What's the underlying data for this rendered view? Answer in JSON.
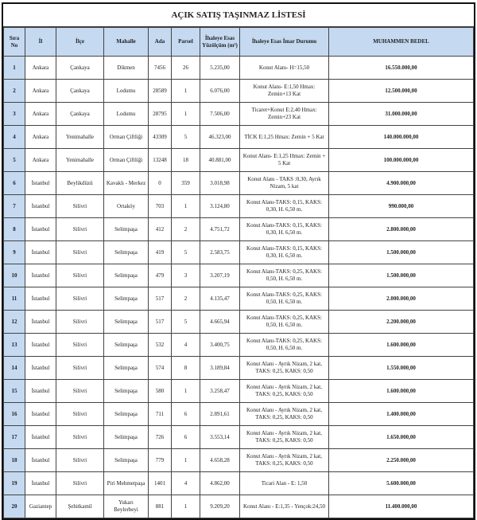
{
  "title": "AÇIK SATIŞ TAŞINMAZ LİSTESİ",
  "columns": [
    "Sıra No",
    "İl",
    "İlçe",
    "Mahalle",
    "Ada",
    "Parsel",
    "İhaleye Esas Yüzölçüm (m²)",
    "İhaleye Esas İmar Durumu",
    "MUHAMMEN BEDEL"
  ],
  "colors": {
    "header_bg": "#c5d9f1",
    "border": "#111111"
  },
  "rows": [
    [
      "1",
      "Ankara",
      "Çankaya",
      "Dikmen",
      "7456",
      "26",
      "5.235,00",
      "Konut Alanı- H=15,50",
      "16.550.000,00"
    ],
    [
      "2",
      "Ankara",
      "Çankaya",
      "Lodumu",
      "28589",
      "1",
      "6.076,00",
      "Konut Alanı- E:1,50 Hmax: Zemin+13 Kat",
      "12.500.000,00"
    ],
    [
      "3",
      "Ankara",
      "Çankaya",
      "Lodumu",
      "28795",
      "1",
      "7.506,00",
      "Ticaret+Konut E:2,40 Hmax: Zemin+23 Kat",
      "31.000.000,00"
    ],
    [
      "4",
      "Ankara",
      "Yenimahalle",
      "Orman Çiftliği",
      "43309",
      "5",
      "46.323,00",
      "TİCK E:1,25 Hmax: Zemin + 5 Kat",
      "140.000.000,00"
    ],
    [
      "5",
      "Ankara",
      "Yenimahalle",
      "Orman Çiftliği",
      "13248",
      "18",
      "40.881,00",
      "Konut Alanı- E:1,25 Hmax: Zemin + 5 Kat",
      "100.000.000,00"
    ],
    [
      "6",
      "İstanbul",
      "Beylikdüzü",
      "Kavaklı - Merkez",
      "0",
      "359",
      "3.018,98",
      "Konut Alanı - TAKS :0,30, Ayrık Nizam, 5 kat",
      "4.900.000,00"
    ],
    [
      "7",
      "İstanbul",
      "Silivri",
      "Ortaköy",
      "703",
      "1",
      "3.124,80",
      "Konut Alanı-TAKS: 0,15, KAKS: 0,30, H. 6,50 m.",
      "990.000,00"
    ],
    [
      "8",
      "İstanbul",
      "Silivri",
      "Selimpaşa",
      "412",
      "2",
      "4.751,72",
      "Konut Alanı-TAKS: 0,15, KAKS: 0,30, H. 6,50 m.",
      "2.800.000,00"
    ],
    [
      "9",
      "İstanbul",
      "Silivri",
      "Selimpaşa",
      "419",
      "5",
      "2.583,75",
      "Konut Alanı-TAKS: 0,15, KAKS: 0,30, H. 6,50 m.",
      "1.500.000,00"
    ],
    [
      "10",
      "İstanbul",
      "Silivri",
      "Selimpaşa",
      "479",
      "3",
      "3.207,19",
      "Konut Alanı-TAKS: 0,25, KAKS: 0,50, H. 6,50 m.",
      "1.500.000,00"
    ],
    [
      "11",
      "İstanbul",
      "Silivri",
      "Selimpaşa",
      "517",
      "2",
      "4.135,47",
      "Konut Alanı-TAKS: 0,25, KAKS: 0,50, H. 6,50 m.",
      "2.000.000,00"
    ],
    [
      "12",
      "İstanbul",
      "Silivri",
      "Selimpaşa",
      "517",
      "5",
      "4.665,94",
      "Konut Alanı-TAKS: 0,25, KAKS: 0,50, H. 6,50 m.",
      "2.200.000,00"
    ],
    [
      "13",
      "İstanbul",
      "Silivri",
      "Selimpaşa",
      "532",
      "4",
      "3.400,75",
      "Konut Alanı-TAKS: 0,25, KAKS: 0,50, H. 6,50 m.",
      "1.600.000,00"
    ],
    [
      "14",
      "İstanbul",
      "Silivri",
      "Selimpaşa",
      "574",
      "8",
      "3.189,84",
      "Konut Alanı - Ayrık Nizam, 2 kat, TAKS: 0,25, KAKS: 0,50",
      "1.550.000,00"
    ],
    [
      "15",
      "İstanbul",
      "Silivri",
      "Selimpaşa",
      "580",
      "1",
      "3.258,47",
      "Konut Alanı - Ayrık Nizam, 2 kat, TAKS: 0,25, KAKS: 0,50",
      "1.600.000,00"
    ],
    [
      "16",
      "İstanbul",
      "Silivri",
      "Selimpaşa",
      "711",
      "6",
      "2.891,61",
      "Konut Alanı - Ayrık Nizam, 2 kat, TAKS: 0,25, KAKS: 0,50",
      "1.400.000,00"
    ],
    [
      "17",
      "İstanbul",
      "Silivri",
      "Selimpaşa",
      "726",
      "6",
      "3.553,14",
      "Konut Alanı - Ayrık Nizam, 2 kat, TAKS: 0,25, KAKS: 0,50",
      "1.650.000,00"
    ],
    [
      "18",
      "İstanbul",
      "Silivri",
      "Selimpaşa",
      "779",
      "1",
      "4.658,28",
      "Konut Alanı - Ayrık Nizam, 2 kat, TAKS: 0,25, KAKS: 0,50",
      "2.250.000,00"
    ],
    [
      "19",
      "İstanbul",
      "Silivri",
      "Piri Mehmetpaşa",
      "1401",
      "4",
      "4.862,00",
      "Ticari Alan - E: 1,50",
      "5.600.000,00"
    ],
    [
      "20",
      "Gaziantep",
      "Şehitkamil",
      "Yukarı Beylerbeyi",
      "881",
      "1",
      "9.209,20",
      "Konut Alanı - E:1,35 - Yençok:24,50",
      "11.400.000,00"
    ]
  ]
}
